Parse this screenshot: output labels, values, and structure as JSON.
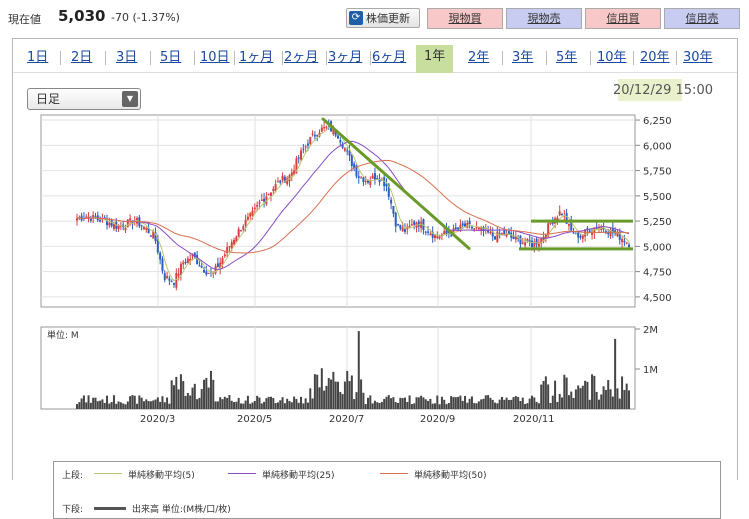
{
  "header": {
    "price_label": "現在値",
    "price_value": "5,030",
    "change": "-70 (-1.37%)",
    "refresh_label": "株価更新",
    "buttons": [
      {
        "label": "現物買",
        "kind": "buy"
      },
      {
        "label": "現物売",
        "kind": "sell"
      },
      {
        "label": "信用買",
        "kind": "buy"
      },
      {
        "label": "信用売",
        "kind": "sell"
      }
    ]
  },
  "tabs": [
    {
      "label": "1日"
    },
    {
      "label": "2日"
    },
    {
      "label": "3日"
    },
    {
      "label": "5日"
    },
    {
      "label": "10日"
    },
    {
      "label": "1ヶ月"
    },
    {
      "label": "2ヶ月"
    },
    {
      "label": "3ヶ月"
    },
    {
      "label": "6ヶ月"
    },
    {
      "label": "1年",
      "active": true
    },
    {
      "label": "2年"
    },
    {
      "label": "3年"
    },
    {
      "label": "5年"
    },
    {
      "label": "10年"
    },
    {
      "label": "20年"
    },
    {
      "label": "30年"
    }
  ],
  "period_select": "日足",
  "datetime": "20/12/29 15:00",
  "chart_data": {
    "type": "candlestick",
    "price_axis": {
      "ticks": [
        "6,250",
        "6,000",
        "5,750",
        "5,500",
        "5,250",
        "5,000",
        "4,750",
        "4,500"
      ],
      "min": 4400,
      "max": 6300
    },
    "volume_axis": {
      "label": "単位: M",
      "ticks": [
        "2M",
        "1M"
      ]
    },
    "x_labels": [
      "2020/3",
      "2020/5",
      "2020/7",
      "2020/9",
      "2020/11"
    ],
    "approx_close_path": [
      5280,
      5300,
      5270,
      5250,
      5200,
      5220,
      5260,
      5180,
      5100,
      4700,
      4650,
      4850,
      4900,
      4780,
      4720,
      4880,
      5050,
      5200,
      5300,
      5450,
      5550,
      5650,
      5700,
      5900,
      6050,
      6150,
      6180,
      6100,
      5900,
      5700,
      5650,
      5700,
      5600,
      5200,
      5150,
      5250,
      5180,
      5100,
      5120,
      5150,
      5200,
      5180,
      5150,
      5100,
      5120,
      5080,
      5050,
      5020,
      5080,
      5250,
      5350,
      5150,
      5100,
      5180,
      5200,
      5150,
      5100,
      5030
    ],
    "colors": {
      "up": "#d84040",
      "down": "#2a5ec2",
      "ma5": "#b8c870",
      "ma25": "#8a4cc8",
      "ma50": "#d87050",
      "trend": "#6a9a2a"
    }
  },
  "legend": {
    "upper_label": "上段:",
    "ma5": "単純移動平均(5)",
    "ma25": "単純移動平均(25)",
    "ma50": "単純移動平均(50)",
    "lower_label": "下段:",
    "volume": "出来高 単位:(M株/口/枚)"
  }
}
